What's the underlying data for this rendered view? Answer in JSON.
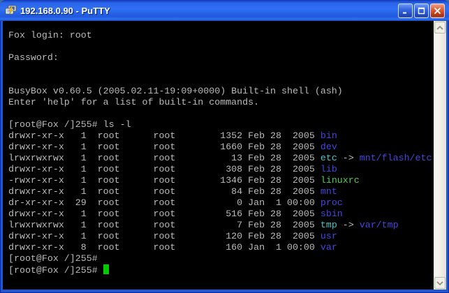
{
  "window": {
    "title": "192.168.0.90 - PuTTY"
  },
  "terminal": {
    "colors": {
      "background": "#000000",
      "foreground": "#bbbbbb",
      "directory": "#4646e0",
      "symlink": "#44c8c8",
      "executable": "#54cc54",
      "cursor": "#00cc00",
      "titlebar_blue": "#2a64ea",
      "close_red": "#c33a14"
    },
    "lines": [
      {
        "text": "Fox login: root"
      },
      {
        "text": ""
      },
      {
        "text": "Password:"
      },
      {
        "text": ""
      },
      {
        "text": ""
      },
      {
        "text": "BusyBox v0.60.5 (2005.02.11-19:09+0000) Built-in shell (ash)"
      },
      {
        "text": "Enter 'help' for a list of built-in commands."
      },
      {
        "text": ""
      },
      {
        "text": "[root@Fox /]255# ls -l"
      },
      {
        "ls": {
          "perms": "drwxr-xr-x",
          "links": 1,
          "owner": "root",
          "group": "root",
          "size": 1352,
          "date": "Feb 28  2005",
          "name": "bin",
          "name_type": "dir"
        }
      },
      {
        "ls": {
          "perms": "drwxr-xr-x",
          "links": 1,
          "owner": "root",
          "group": "root",
          "size": 1660,
          "date": "Feb 28  2005",
          "name": "dev",
          "name_type": "dir"
        }
      },
      {
        "ls": {
          "perms": "lrwxrwxrwx",
          "links": 1,
          "owner": "root",
          "group": "root",
          "size": 13,
          "date": "Feb 28  2005",
          "name": "etc",
          "name_type": "symlink",
          "target": "mnt/flash/etc"
        }
      },
      {
        "ls": {
          "perms": "drwxr-xr-x",
          "links": 1,
          "owner": "root",
          "group": "root",
          "size": 308,
          "date": "Feb 28  2005",
          "name": "lib",
          "name_type": "dir"
        }
      },
      {
        "ls": {
          "perms": "-rwxr-xr-x",
          "links": 1,
          "owner": "root",
          "group": "root",
          "size": 1346,
          "date": "Feb 28  2005",
          "name": "linuxrc",
          "name_type": "exec"
        }
      },
      {
        "ls": {
          "perms": "drwxr-xr-x",
          "links": 1,
          "owner": "root",
          "group": "root",
          "size": 84,
          "date": "Feb 28  2005",
          "name": "mnt",
          "name_type": "dir"
        }
      },
      {
        "ls": {
          "perms": "dr-xr-xr-x",
          "links": 29,
          "owner": "root",
          "group": "root",
          "size": 0,
          "date": "Jan  1 00:00",
          "name": "proc",
          "name_type": "dir"
        }
      },
      {
        "ls": {
          "perms": "drwxr-xr-x",
          "links": 1,
          "owner": "root",
          "group": "root",
          "size": 516,
          "date": "Feb 28  2005",
          "name": "sbin",
          "name_type": "dir"
        }
      },
      {
        "ls": {
          "perms": "lrwxrwxrwx",
          "links": 1,
          "owner": "root",
          "group": "root",
          "size": 7,
          "date": "Feb 28  2005",
          "name": "tmp",
          "name_type": "symlink",
          "target": "var/tmp"
        }
      },
      {
        "ls": {
          "perms": "drwxr-xr-x",
          "links": 1,
          "owner": "root",
          "group": "root",
          "size": 120,
          "date": "Feb 28  2005",
          "name": "usr",
          "name_type": "dir"
        }
      },
      {
        "ls": {
          "perms": "drwxr-xr-x",
          "links": 8,
          "owner": "root",
          "group": "root",
          "size": 160,
          "date": "Jan  1 00:00",
          "name": "var",
          "name_type": "dir"
        }
      },
      {
        "text": "[root@Fox /]255#"
      },
      {
        "text": "[root@Fox /]255# ",
        "cursor": true
      }
    ]
  }
}
